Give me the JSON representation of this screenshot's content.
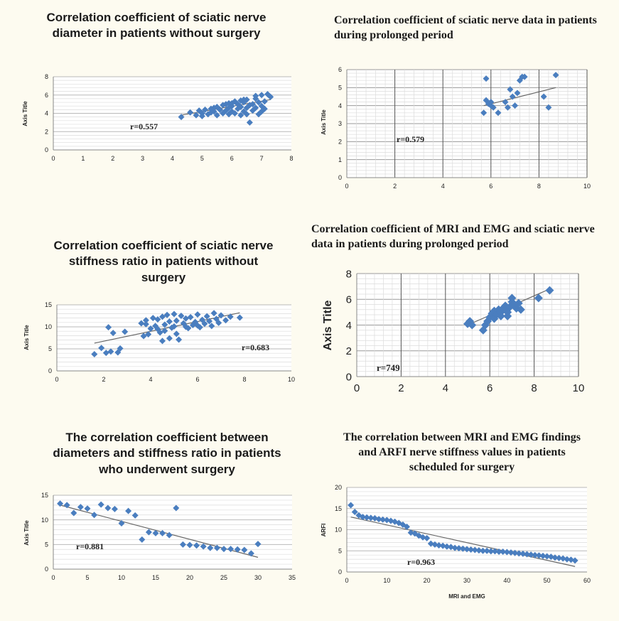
{
  "chart_data": [
    {
      "type": "scatter",
      "title": "Correlation coefficient of sciatic nerve diameter in patients without surgery",
      "ylabel": "Axis Title",
      "xlabel": "",
      "annotation": "r=0.557",
      "xlim": [
        0,
        8
      ],
      "ylim": [
        0,
        8
      ],
      "xticks": [
        0,
        1,
        2,
        3,
        4,
        5,
        6,
        7,
        8
      ],
      "yticks": [
        0,
        2,
        4,
        6,
        8
      ],
      "grid": "horizontal",
      "marker_color": "#4a7ebf",
      "x": [
        4.3,
        4.6,
        4.8,
        4.9,
        5.0,
        5.1,
        5.2,
        5.3,
        5.3,
        5.4,
        5.5,
        5.5,
        5.6,
        5.7,
        5.7,
        5.8,
        5.8,
        5.9,
        5.9,
        6.0,
        6.0,
        6.0,
        6.1,
        6.1,
        6.2,
        6.2,
        6.3,
        6.3,
        6.3,
        6.4,
        6.4,
        6.5,
        6.5,
        6.5,
        6.6,
        6.7,
        6.7,
        6.8,
        6.8,
        6.9,
        6.9,
        7.0,
        7.0,
        7.1,
        7.1,
        7.2,
        7.3,
        7.0,
        6.6,
        5.6,
        5.0,
        6.4,
        6.8,
        5.4,
        5.9
      ],
      "y": [
        3.6,
        4.1,
        3.8,
        4.3,
        4.0,
        4.4,
        3.9,
        4.5,
        4.1,
        4.2,
        3.8,
        4.7,
        4.4,
        4.0,
        4.9,
        4.3,
        5.0,
        3.9,
        4.6,
        4.2,
        5.1,
        4.8,
        4.0,
        5.3,
        4.5,
        5.0,
        3.8,
        4.7,
        5.4,
        4.2,
        5.2,
        4.6,
        5.5,
        3.9,
        4.9,
        5.0,
        4.3,
        5.6,
        4.6,
        3.9,
        5.2,
        4.8,
        6.0,
        5.3,
        4.5,
        6.1,
        5.8,
        4.2,
        3.0,
        4.4,
        3.7,
        5.5,
        5.9,
        4.6,
        5.1
      ],
      "trend": [
        [
          4.3,
          3.8
        ],
        [
          7.3,
          5.5
        ]
      ]
    },
    {
      "type": "scatter",
      "title": "Correlation coefficient of sciatic nerve data in patients during prolonged period",
      "ylabel": "Axis Title",
      "xlabel": "",
      "annotation": "r=0.579",
      "xlim": [
        0,
        10
      ],
      "ylim": [
        0,
        6
      ],
      "xticks": [
        0,
        2,
        4,
        6,
        8,
        10
      ],
      "yticks": [
        0,
        1,
        2,
        3,
        4,
        5,
        6
      ],
      "grid": "both",
      "marker_color": "#4a7ebf",
      "x": [
        5.7,
        5.8,
        5.8,
        5.9,
        6.0,
        6.1,
        6.3,
        6.6,
        6.7,
        6.8,
        6.9,
        7.0,
        7.1,
        7.2,
        7.3,
        7.4,
        8.2,
        8.4,
        8.7,
        6.0
      ],
      "y": [
        3.6,
        5.5,
        4.3,
        4.1,
        4.0,
        3.9,
        3.6,
        4.2,
        3.9,
        4.9,
        4.5,
        4.0,
        4.7,
        5.4,
        5.6,
        5.6,
        4.5,
        3.9,
        5.7,
        4.2
      ],
      "trend": [
        [
          5.7,
          4.0
        ],
        [
          8.7,
          5.0
        ]
      ]
    },
    {
      "type": "scatter",
      "title": "Correlation coefficient of sciatic nerve stiffness ratio in patients without surgery",
      "ylabel": "Axis Title",
      "xlabel": "",
      "annotation": "r=0.683",
      "xlim": [
        0,
        10
      ],
      "ylim": [
        0,
        15
      ],
      "xticks": [
        0,
        2,
        4,
        6,
        8,
        10
      ],
      "yticks": [
        0,
        5,
        10,
        15
      ],
      "grid": "horizontal",
      "marker_color": "#4a7ebf",
      "x": [
        1.6,
        1.9,
        2.1,
        2.2,
        2.3,
        2.4,
        2.6,
        2.7,
        2.9,
        3.6,
        3.7,
        3.8,
        3.9,
        4.0,
        4.1,
        4.2,
        4.3,
        4.4,
        4.5,
        4.5,
        4.6,
        4.7,
        4.8,
        4.8,
        4.9,
        5.0,
        5.0,
        5.1,
        5.2,
        5.3,
        5.4,
        5.5,
        5.6,
        5.7,
        5.8,
        5.9,
        6.0,
        6.1,
        6.2,
        6.3,
        6.4,
        6.5,
        6.6,
        6.7,
        6.8,
        6.9,
        7.0,
        7.2,
        7.4,
        7.8,
        4.6,
        5.1,
        4.3,
        5.5,
        3.8,
        6.0
      ],
      "y": [
        3.8,
        5.2,
        4.1,
        9.9,
        4.4,
        8.6,
        4.2,
        5.1,
        8.9,
        10.8,
        7.9,
        11.5,
        8.3,
        9.6,
        12.0,
        10.2,
        11.7,
        8.7,
        12.3,
        6.8,
        10.5,
        12.7,
        7.4,
        11.2,
        9.8,
        12.9,
        10.1,
        11.4,
        7.1,
        12.5,
        10.8,
        11.9,
        9.7,
        12.2,
        10.4,
        11.1,
        12.8,
        9.9,
        11.6,
        10.7,
        12.4,
        11.3,
        10.2,
        13.1,
        11.8,
        10.9,
        12.6,
        11.5,
        12.3,
        12.1,
        9.1,
        8.4,
        9.5,
        10.0,
        10.6,
        10.3
      ],
      "trend": [
        [
          1.6,
          6.3
        ],
        [
          7.8,
          13.2
        ]
      ]
    },
    {
      "type": "scatter",
      "title": "Correlation coefficient of MRI and EMG and sciatic nerve data in patients during prolonged period",
      "ylabel": "Axis Title",
      "xlabel": "",
      "annotation": "r=749",
      "xlim": [
        0,
        10
      ],
      "ylim": [
        0,
        8
      ],
      "xticks": [
        0,
        2,
        4,
        6,
        8,
        10
      ],
      "yticks": [
        0,
        2,
        4,
        6,
        8
      ],
      "grid": "both",
      "marker_color": "#4a7ebf",
      "x": [
        5.0,
        5.1,
        5.2,
        5.7,
        5.8,
        5.9,
        6.0,
        6.1,
        6.2,
        6.2,
        6.3,
        6.4,
        6.5,
        6.6,
        6.7,
        6.8,
        6.9,
        7.0,
        7.0,
        7.1,
        7.2,
        7.3,
        7.4,
        8.2,
        8.7,
        6.5,
        6.8
      ],
      "y": [
        4.1,
        4.3,
        4.0,
        3.6,
        4.0,
        4.3,
        4.6,
        4.9,
        4.5,
        5.1,
        4.8,
        5.2,
        5.0,
        5.3,
        5.5,
        4.7,
        5.4,
        5.8,
        6.1,
        5.6,
        5.3,
        5.7,
        5.2,
        6.1,
        6.7,
        4.7,
        5.0
      ],
      "trend": [
        [
          5.0,
          4.0
        ],
        [
          8.7,
          6.8
        ]
      ]
    },
    {
      "type": "scatter",
      "title": "The correlation coefficient between diameters and stiffness ratio in patients who underwent surgery",
      "ylabel": "Axis Title",
      "xlabel": "",
      "annotation": "r=0.881",
      "xlim": [
        0,
        35
      ],
      "ylim": [
        0,
        15
      ],
      "xticks": [
        0,
        5,
        10,
        15,
        20,
        25,
        30,
        35
      ],
      "yticks": [
        0,
        5,
        10,
        15
      ],
      "grid": "horizontal",
      "marker_color": "#4a7ebf",
      "x": [
        1,
        2,
        3,
        4,
        5,
        6,
        7,
        8,
        9,
        10,
        11,
        12,
        13,
        14,
        15,
        16,
        17,
        18,
        19,
        20,
        21,
        22,
        23,
        24,
        25,
        26,
        27,
        28,
        29,
        30
      ],
      "y": [
        13.3,
        13.0,
        11.4,
        12.6,
        12.3,
        11.0,
        13.1,
        12.4,
        12.2,
        9.3,
        11.8,
        10.9,
        6.0,
        7.5,
        7.3,
        7.3,
        6.9,
        12.4,
        5.0,
        4.9,
        4.8,
        4.6,
        4.3,
        4.3,
        4.1,
        4.1,
        4.0,
        3.9,
        3.2,
        5.1
      ],
      "trend": [
        [
          1,
          13.0
        ],
        [
          30,
          2.4
        ]
      ]
    },
    {
      "type": "scatter",
      "title": "The correlation between MRI and EMG findings and ARFI nerve stiffness values in patients scheduled for surgery",
      "ylabel": "ARFI",
      "xlabel": "MRI and EMG",
      "annotation": "r=0.963",
      "xlim": [
        0,
        60
      ],
      "ylim": [
        0,
        20
      ],
      "xticks": [
        0,
        10,
        20,
        30,
        40,
        50,
        60
      ],
      "yticks": [
        0,
        5,
        10,
        15,
        20
      ],
      "grid": "horizontal",
      "marker_color": "#4a7ebf",
      "x": [
        1,
        2,
        3,
        4,
        5,
        6,
        7,
        8,
        9,
        10,
        11,
        12,
        13,
        14,
        15,
        16,
        17,
        18,
        19,
        20,
        21,
        22,
        23,
        24,
        25,
        26,
        27,
        28,
        29,
        30,
        31,
        32,
        33,
        34,
        35,
        36,
        37,
        38,
        39,
        40,
        41,
        42,
        43,
        44,
        45,
        46,
        47,
        48,
        49,
        50,
        51,
        52,
        53,
        54,
        55,
        56,
        57
      ],
      "y": [
        15.8,
        14.2,
        13.4,
        13.0,
        12.9,
        12.8,
        12.7,
        12.5,
        12.4,
        12.3,
        12.1,
        11.9,
        11.6,
        11.2,
        10.7,
        9.3,
        9.1,
        8.6,
        8.2,
        8.0,
        6.7,
        6.5,
        6.3,
        6.2,
        6.0,
        5.9,
        5.7,
        5.6,
        5.5,
        5.4,
        5.3,
        5.2,
        5.1,
        5.0,
        5.0,
        4.9,
        4.9,
        4.8,
        4.8,
        4.7,
        4.6,
        4.5,
        4.4,
        4.3,
        4.2,
        4.1,
        4.0,
        3.9,
        3.8,
        3.7,
        3.6,
        3.4,
        3.3,
        3.2,
        3.0,
        2.9,
        2.7
      ],
      "trend": [
        [
          1,
          13.0
        ],
        [
          57,
          1.3
        ]
      ]
    }
  ]
}
